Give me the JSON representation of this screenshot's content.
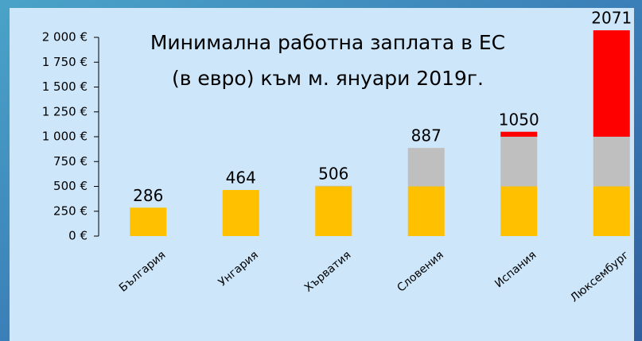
{
  "chart_data": {
    "type": "stacked_bar",
    "title_lines": [
      "Минимална работна заплата в ЕС",
      "(в евро) към м. януари 2019г."
    ],
    "categories": [
      "България",
      "Унгария",
      "Хърватия",
      "Словения",
      "Испания",
      "Люксембург"
    ],
    "series": [
      {
        "color": "#ffc000",
        "values": [
          286,
          464,
          500,
          500,
          500,
          500
        ]
      },
      {
        "color": "#bfbfbf",
        "values": [
          0,
          0,
          6,
          387,
          500,
          500
        ]
      },
      {
        "color": "#ff0000",
        "values": [
          0,
          0,
          0,
          0,
          50,
          1071
        ]
      }
    ],
    "total_labels": [
      "286",
      "464",
      "506",
      "887",
      "1050",
      "2071"
    ],
    "ylim": [
      0,
      2000
    ],
    "yticks": [
      {
        "value": 0,
        "label": "0 €"
      },
      {
        "value": 250,
        "label": "250 €"
      },
      {
        "value": 500,
        "label": "500 €"
      },
      {
        "value": 750,
        "label": "750 €"
      },
      {
        "value": 1000,
        "label": "1 000 €"
      },
      {
        "value": 1250,
        "label": "1 250 €"
      },
      {
        "value": 1500,
        "label": "1 500 €"
      },
      {
        "value": 1750,
        "label": "1 750 €"
      },
      {
        "value": 2000,
        "label": "2 000 €"
      }
    ]
  }
}
